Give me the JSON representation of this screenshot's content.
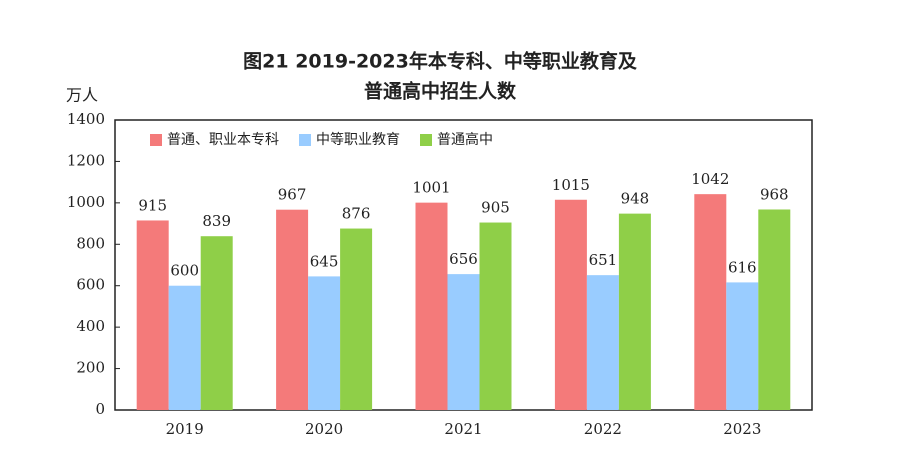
{
  "chart_data": {
    "type": "bar",
    "title": [
      "图21   2019-2023年本专科、中等职业教育及",
      "普通高中招生人数"
    ],
    "y_label": "万人",
    "categories": [
      "2019",
      "2020",
      "2021",
      "2022",
      "2023"
    ],
    "series": [
      {
        "name": "普通、职业本专科",
        "color": "#f47a7a",
        "values": [
          915,
          967,
          1001,
          1015,
          1042
        ]
      },
      {
        "name": "中等职业教育",
        "color": "#99ccff",
        "values": [
          600,
          645,
          656,
          651,
          616
        ]
      },
      {
        "name": "普通高中",
        "color": "#8fcf48",
        "values": [
          839,
          876,
          905,
          948,
          968
        ]
      }
    ],
    "ylim": [
      0,
      1400
    ],
    "yticks": [
      0,
      200,
      400,
      600,
      800,
      1000,
      1200,
      1400
    ],
    "grid": false,
    "legend": "top-left"
  }
}
